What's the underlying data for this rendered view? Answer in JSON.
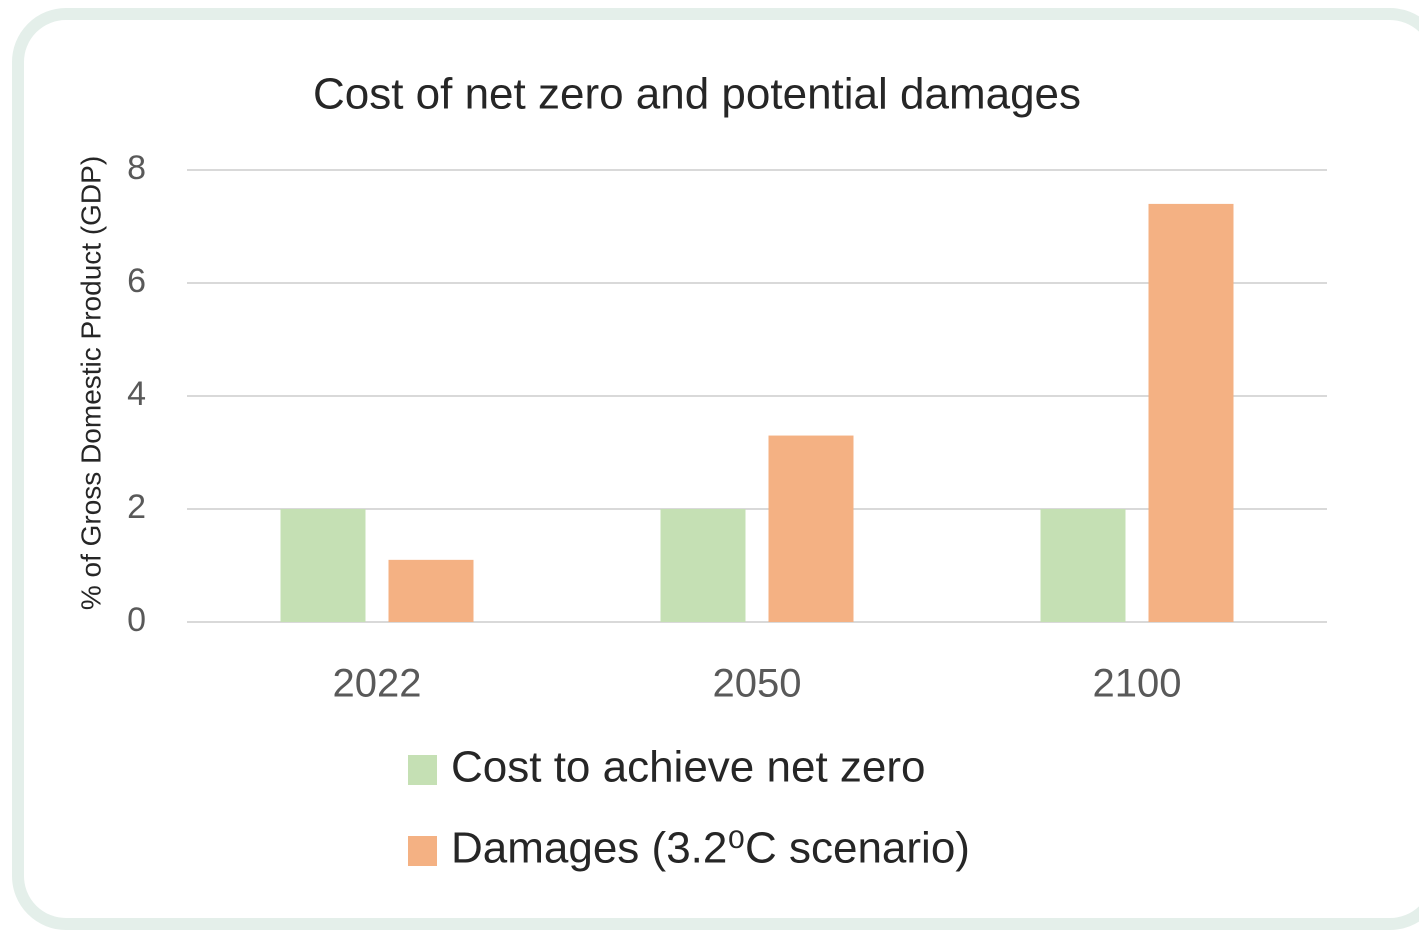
{
  "chart_data": {
    "type": "bar",
    "title": "Cost of net zero and potential damages",
    "y_label": "% of Gross Domestic Product (GDP)",
    "categories": [
      "2022",
      "2050",
      "2100"
    ],
    "series": [
      {
        "name": "Cost to achieve net zero",
        "color": "#c5e0b4",
        "values": [
          2,
          2,
          2
        ]
      },
      {
        "name": "Damages (3.2⁰C scenario)",
        "color": "#f4b183",
        "values": [
          1.1,
          3.3,
          7.4
        ]
      }
    ],
    "ylim": [
      0,
      8
    ],
    "yticks": [
      0,
      2,
      4,
      6,
      8
    ],
    "grid": true,
    "legend": "bottom"
  }
}
